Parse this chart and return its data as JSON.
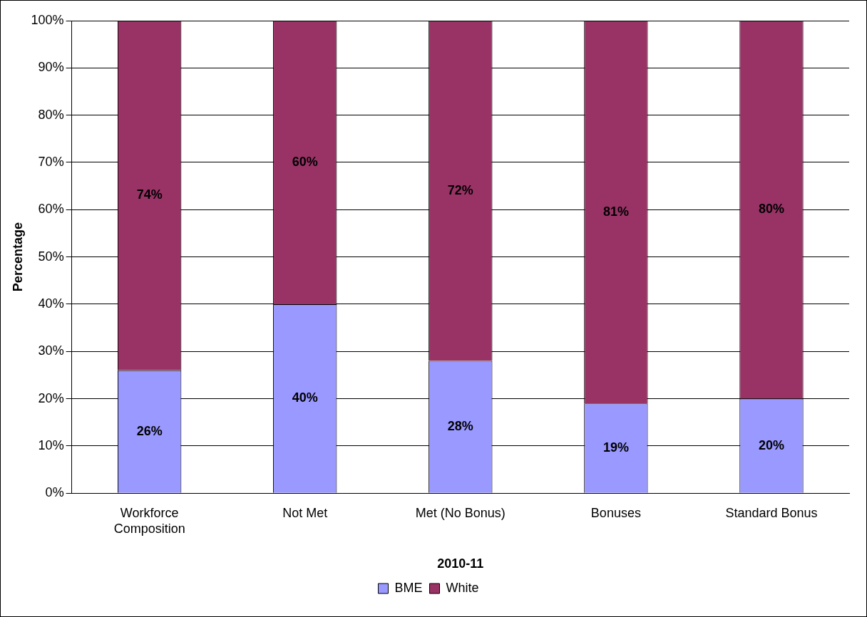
{
  "chart_data": {
    "type": "bar",
    "stacked": true,
    "xlabel": "2010-11",
    "ylabel": "Percentage",
    "categories": [
      "Workforce Composition",
      "Not Met",
      "Met (No Bonus)",
      "Bonuses",
      "Standard Bonus"
    ],
    "series": [
      {
        "name": "BME",
        "color": "#9999ff",
        "values": [
          26,
          40,
          28,
          19,
          20
        ],
        "value_labels": [
          "26%",
          "40%",
          "28%",
          "19%",
          "20%"
        ]
      },
      {
        "name": "White",
        "color": "#993366",
        "values": [
          74,
          60,
          72,
          81,
          80
        ],
        "value_labels": [
          "74%",
          "60%",
          "72%",
          "81%",
          "80%"
        ]
      }
    ],
    "ylim": [
      0,
      100
    ],
    "yticks": [
      {
        "value": 0,
        "label": "0%"
      },
      {
        "value": 10,
        "label": "10%"
      },
      {
        "value": 20,
        "label": "20%"
      },
      {
        "value": 30,
        "label": "30%"
      },
      {
        "value": 40,
        "label": "40%"
      },
      {
        "value": 50,
        "label": "50%"
      },
      {
        "value": 60,
        "label": "60%"
      },
      {
        "value": 70,
        "label": "70%"
      },
      {
        "value": 80,
        "label": "80%"
      },
      {
        "value": 90,
        "label": "90%"
      },
      {
        "value": 100,
        "label": "100%"
      }
    ],
    "grid": "y",
    "legend": "bottom"
  }
}
